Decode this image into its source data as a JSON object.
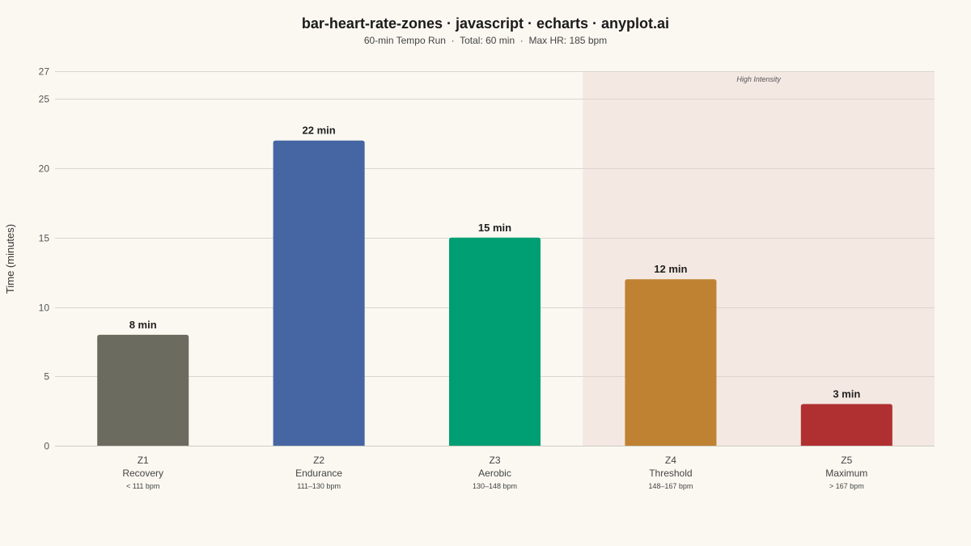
{
  "chart_data": {
    "type": "bar",
    "title": "bar-heart-rate-zones · javascript · echarts · anyplot.ai",
    "subtitle": "60-min Tempo Run  ·  Total: 60 min  ·  Max HR: 185 bpm",
    "ylabel": "Time (minutes)",
    "ylim": [
      0,
      27
    ],
    "yticks": [
      0,
      5,
      10,
      15,
      20,
      25,
      27
    ],
    "grid": true,
    "categories": [
      "Z1",
      "Z2",
      "Z3",
      "Z4",
      "Z5"
    ],
    "category_names": [
      "Recovery",
      "Endurance",
      "Aerobic",
      "Threshold",
      "Maximum"
    ],
    "category_ranges": [
      "< 111 bpm",
      "111–130 bpm",
      "130–148 bpm",
      "148–167 bpm",
      "> 167 bpm"
    ],
    "values": [
      8,
      22,
      15,
      12,
      3
    ],
    "data_labels": [
      "8 min",
      "22 min",
      "15 min",
      "12 min",
      "3 min"
    ],
    "colors": [
      "#6B6B5F",
      "#4566A3",
      "#009E73",
      "#BE8232",
      "#B03032"
    ],
    "annotations": [
      {
        "label": "High Intensity",
        "from": "Z4",
        "to": "Z5",
        "color": "#F4E8E2"
      }
    ]
  }
}
